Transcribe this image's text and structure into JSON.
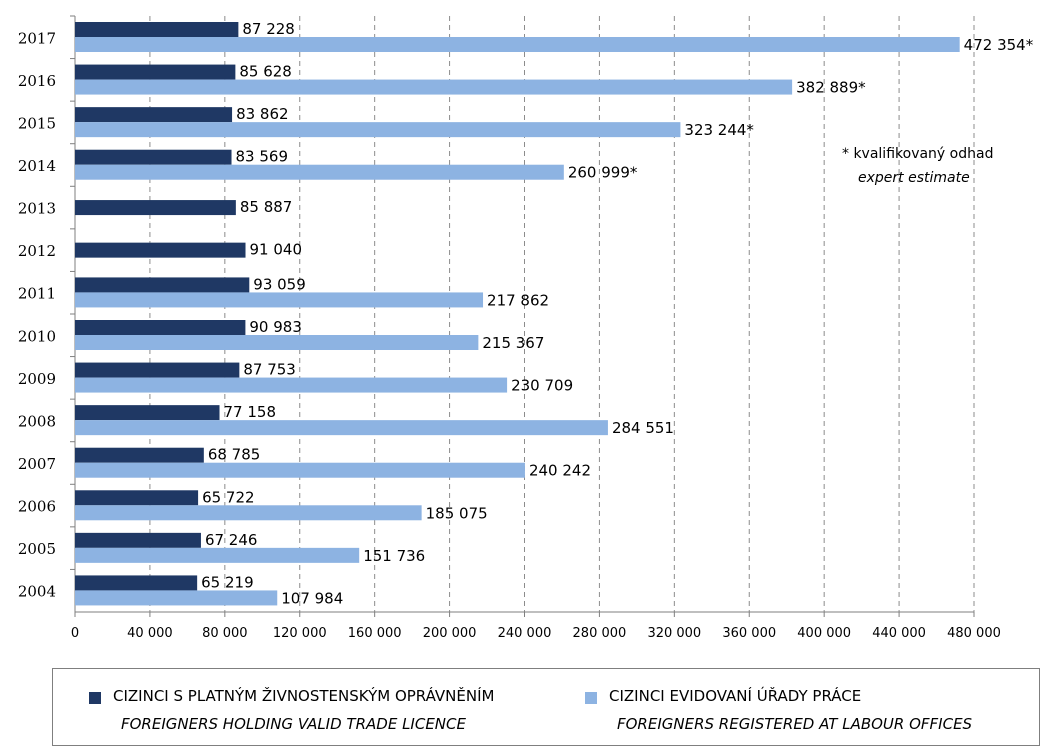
{
  "chart_data": {
    "type": "bar",
    "orientation": "horizontal",
    "categories": [
      "2017",
      "2016",
      "2015",
      "2014",
      "2013",
      "2012",
      "2011",
      "2010",
      "2009",
      "2008",
      "2007",
      "2006",
      "2005",
      "2004"
    ],
    "series": [
      {
        "name": "CIZINCI S PLATNÝM ŽIVNOSTENSKÝM OPRÁVNĚNÍM",
        "name_en": "FOREIGNERS HOLDING VALID TRADE LICENCE",
        "color": "#1f3864",
        "values": [
          87228,
          85628,
          83862,
          83569,
          85887,
          91040,
          93059,
          90983,
          87753,
          77158,
          68785,
          65722,
          67246,
          65219
        ],
        "labels": [
          "87 228",
          "85 628",
          "83 862",
          "83 569",
          "85 887",
          "91 040",
          "93 059",
          "90 983",
          "87 753",
          "77 158",
          "68 785",
          "65 722",
          "67 246",
          "65 219"
        ]
      },
      {
        "name": "CIZINCI EVIDOVANÍ ÚŘADY PRÁCE",
        "name_en": "FOREIGNERS REGISTERED AT LABOUR OFFICES",
        "color": "#8db3e2",
        "values": [
          472354,
          382889,
          323244,
          260999,
          null,
          null,
          217862,
          215367,
          230709,
          284551,
          240242,
          185075,
          151736,
          107984
        ],
        "labels": [
          "472 354*",
          "382 889*",
          "323 244*",
          "260 999*",
          "",
          "",
          "217 862",
          "215 367",
          "230 709",
          "284 551",
          "240 242",
          "185 075",
          "151 736",
          "107 984"
        ]
      }
    ],
    "xlim": [
      0,
      480000
    ],
    "x_ticks": [
      "0",
      "40 000",
      "80 000",
      "120 000",
      "160 000",
      "200 000",
      "240 000",
      "280 000",
      "320 000",
      "360 000",
      "400 000",
      "440 000",
      "480 000"
    ],
    "grid": "vertical dashed",
    "legend_position": "bottom",
    "annotation": {
      "text": "* kvalifikovaný odhad",
      "text_en": "expert estimate"
    }
  }
}
